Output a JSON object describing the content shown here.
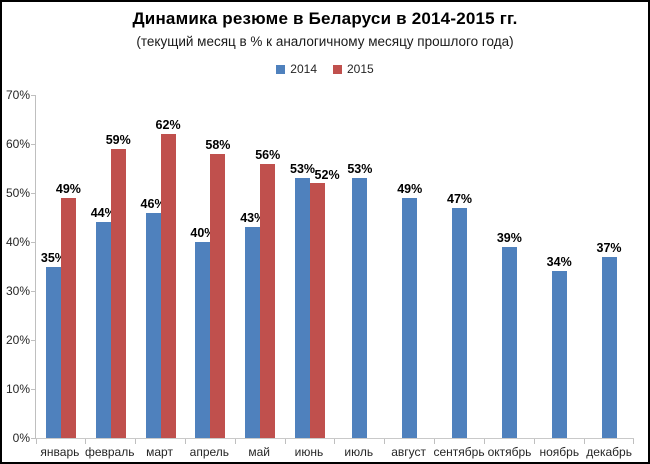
{
  "chart_data": {
    "type": "bar",
    "title": "Динамика резюме в Беларуси в 2014-2015 гг.",
    "subtitle": "(текущий месяц в % к аналогичному месяцу прошлого года)",
    "categories": [
      "январь",
      "февраль",
      "март",
      "апрель",
      "май",
      "июнь",
      "июль",
      "август",
      "сентябрь",
      "октябрь",
      "ноябрь",
      "декабрь"
    ],
    "series": [
      {
        "name": "2014",
        "color": "#4f81bd",
        "values": [
          35,
          44,
          46,
          40,
          43,
          53,
          53,
          49,
          47,
          39,
          34,
          37
        ]
      },
      {
        "name": "2015",
        "color": "#c0504d",
        "values": [
          49,
          59,
          62,
          58,
          56,
          52,
          null,
          null,
          null,
          null,
          null,
          null
        ]
      }
    ],
    "ylim": [
      0,
      70
    ],
    "y_ticks": [
      "0%",
      "10%",
      "20%",
      "30%",
      "40%",
      "50%",
      "60%",
      "70%"
    ],
    "value_label_suffix": "%",
    "grid": false,
    "legend_position": "top"
  }
}
